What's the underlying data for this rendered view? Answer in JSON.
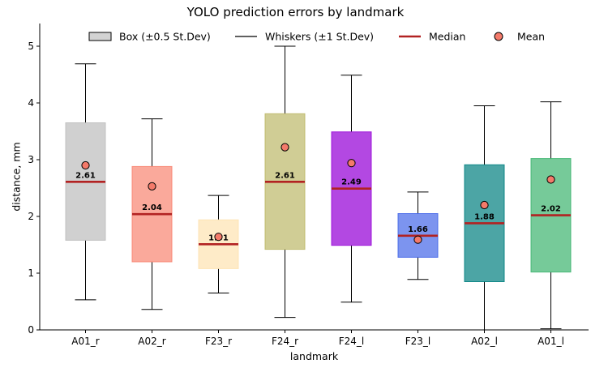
{
  "chart_data": {
    "type": "box",
    "title": "YOLO prediction errors by landmark",
    "xlabel": "landmark",
    "ylabel": "distance, mm",
    "ylim": [
      0,
      5.4
    ],
    "yticks": [
      "0",
      "1",
      "2",
      "3",
      "4",
      "5"
    ],
    "grid": false,
    "legend_position": "top",
    "legend": [
      {
        "label": "Box (±0.5 St.Dev)",
        "kind": "box"
      },
      {
        "label": "Whiskers (±1 St.Dev)",
        "kind": "whisker"
      },
      {
        "label": "Median",
        "kind": "median"
      },
      {
        "label": "Mean",
        "kind": "mean"
      }
    ],
    "categories": [
      "A01_r",
      "A02_r",
      "F23_r",
      "F24_r",
      "F24_l",
      "F23_l",
      "A02_l",
      "A01_l"
    ],
    "series": [
      {
        "category": "A01_r",
        "whisker_low": 0.53,
        "box_low": 1.58,
        "median": 2.61,
        "box_high": 3.65,
        "whisker_high": 4.69,
        "mean": 2.9,
        "median_label": "2.61",
        "color": "#bcbcbc",
        "alpha": 0.7
      },
      {
        "category": "A02_r",
        "whisker_low": 0.36,
        "box_low": 1.2,
        "median": 2.04,
        "box_high": 2.88,
        "whisker_high": 3.72,
        "mean": 2.53,
        "median_label": "2.04",
        "color": "#f88471",
        "alpha": 0.7
      },
      {
        "category": "F23_r",
        "whisker_low": 0.65,
        "box_low": 1.08,
        "median": 1.51,
        "box_high": 1.94,
        "whisker_high": 2.37,
        "mean": 1.64,
        "median_label": "1.51",
        "color": "#fee2b0",
        "alpha": 0.7
      },
      {
        "category": "F24_r",
        "whisker_low": 0.22,
        "box_low": 1.42,
        "median": 2.61,
        "box_high": 3.81,
        "whisker_high": 5.0,
        "mean": 3.22,
        "median_label": "2.61",
        "color": "#bcb868",
        "alpha": 0.7
      },
      {
        "category": "F24_l",
        "whisker_low": 0.49,
        "box_low": 1.49,
        "median": 2.49,
        "box_high": 3.49,
        "whisker_high": 4.49,
        "mean": 2.94,
        "median_label": "2.49",
        "color": "#9a0bd8",
        "alpha": 0.75
      },
      {
        "category": "F23_l",
        "whisker_low": 0.89,
        "box_low": 1.28,
        "median": 1.66,
        "box_high": 2.05,
        "whisker_high": 2.43,
        "mean": 1.59,
        "median_label": "1.66",
        "color": "#4466e8",
        "alpha": 0.7
      },
      {
        "category": "A02_l",
        "whisker_low": 0.0,
        "box_low": 0.85,
        "median": 1.88,
        "box_high": 2.91,
        "whisker_high": 3.95,
        "mean": 2.2,
        "median_label": "1.88",
        "color": "#007f7f",
        "alpha": 0.7
      },
      {
        "category": "A01_l",
        "whisker_low": 0.02,
        "box_low": 1.02,
        "median": 2.02,
        "box_high": 3.02,
        "whisker_high": 4.02,
        "mean": 2.65,
        "median_label": "2.02",
        "color": "#3cb46e",
        "alpha": 0.7
      }
    ],
    "colors": {
      "median": "#b22222",
      "mean_fill": "#f47a6a",
      "mean_edge": "#000000"
    }
  }
}
